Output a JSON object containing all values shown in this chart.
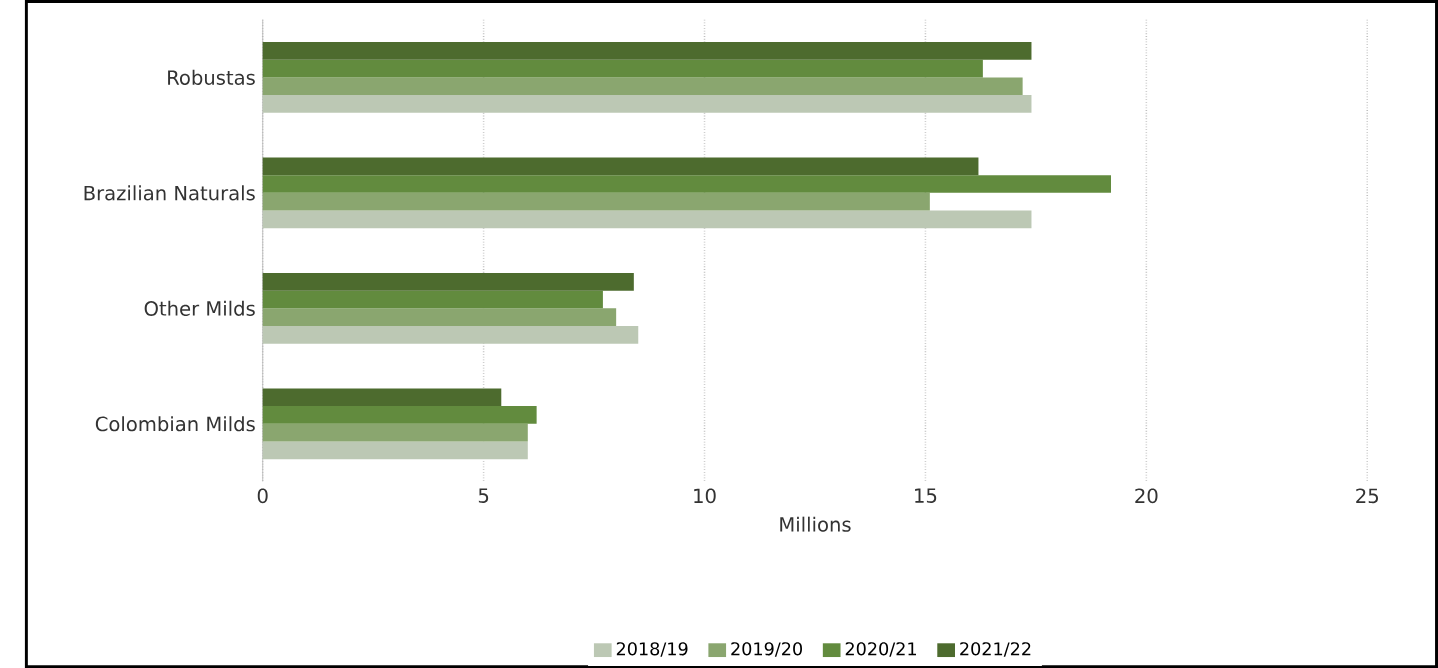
{
  "chart_data": {
    "type": "bar",
    "orientation": "horizontal",
    "xlabel": "Millions",
    "categories": [
      "Robustas",
      "Brazilian Naturals",
      "Other Milds",
      "Colombian Milds"
    ],
    "series": [
      {
        "name": "2018/19",
        "color": "#bcc8b4",
        "values": [
          17.4,
          17.4,
          8.5,
          6.0
        ]
      },
      {
        "name": "2019/20",
        "color": "#8aa66f",
        "values": [
          17.2,
          15.1,
          8.0,
          6.0
        ]
      },
      {
        "name": "2020/21",
        "color": "#628b3e",
        "values": [
          16.3,
          19.2,
          7.7,
          6.2
        ]
      },
      {
        "name": "2021/22",
        "color": "#4d6b2e",
        "values": [
          17.4,
          16.2,
          8.4,
          5.4
        ]
      }
    ],
    "xlim": [
      0,
      25
    ],
    "xticks": [
      0,
      5,
      10,
      15,
      20,
      25
    ],
    "grid": "x",
    "legend": "bottom"
  }
}
